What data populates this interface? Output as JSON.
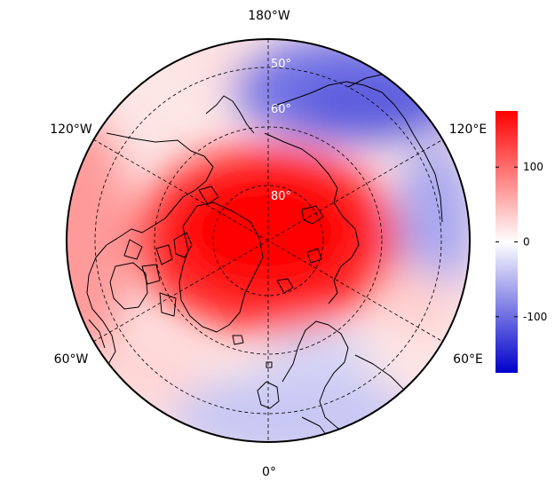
{
  "map": {
    "projection": "north polar stereographic",
    "longitude_labels": {
      "top": "180°W",
      "bottom": "0°",
      "upper_left": "120°W",
      "upper_right": "120°E",
      "lower_left": "60°W",
      "lower_right": "60°E"
    },
    "latitude_labels": [
      "50°",
      "60°",
      "80°"
    ],
    "field": {
      "description_regions": [
        {
          "name": "polar-cap",
          "sign": "positive",
          "peak": 170
        },
        {
          "name": "north-pacific-siberia",
          "sign": "negative",
          "peak": -90
        },
        {
          "name": "europe",
          "sign": "negative",
          "peak": -50
        },
        {
          "name": "north-america-east",
          "sign": "positive",
          "peak": 40
        }
      ]
    }
  },
  "colorbar": {
    "range": [
      -175,
      175
    ],
    "ticks": [
      "100",
      "0",
      "-100"
    ],
    "tick_values": [
      100,
      0,
      -100
    ],
    "colors": {
      "low": "#0000cc",
      "mid": "#ffffff",
      "high": "#ff0000"
    }
  }
}
